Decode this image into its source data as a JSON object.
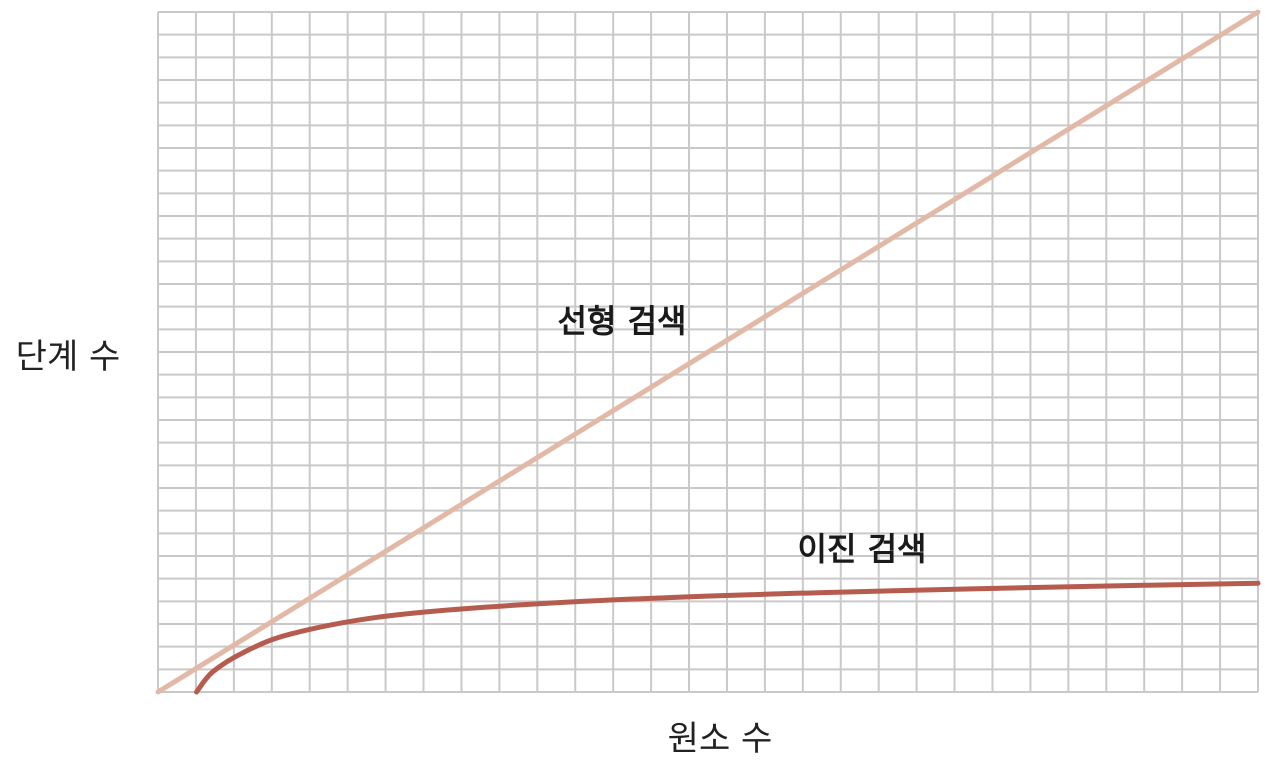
{
  "chart_data": {
    "type": "line",
    "title": "",
    "xlabel": "원소 수",
    "ylabel": "단계 수",
    "grid": true,
    "xlim": [
      0,
      1
    ],
    "ylim": [
      0,
      1
    ],
    "series": [
      {
        "name": "선형 검색",
        "color": "#e2b8a6",
        "x": [
          0,
          1
        ],
        "y": [
          0,
          1
        ]
      },
      {
        "name": "이진 검색",
        "color": "#b55c4e",
        "x": [
          0.035,
          0.05,
          0.08,
          0.12,
          0.2,
          0.3,
          0.45,
          0.6,
          0.75,
          0.9,
          1.0
        ],
        "y": [
          0.0,
          0.03,
          0.06,
          0.085,
          0.11,
          0.125,
          0.138,
          0.146,
          0.152,
          0.157,
          0.16
        ]
      }
    ]
  }
}
